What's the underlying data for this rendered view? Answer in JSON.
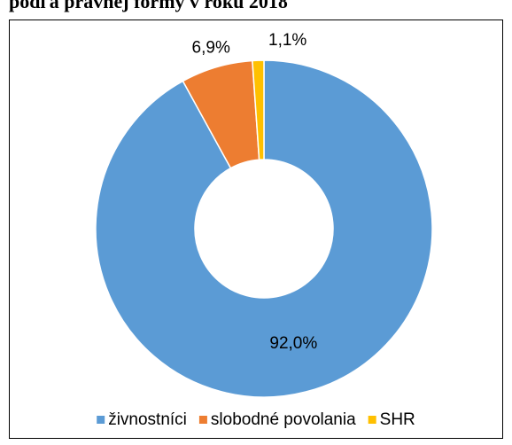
{
  "chart_data": {
    "type": "pie",
    "title": "podľa právnej formy v roku 2018",
    "categories": [
      "živnostníci",
      "slobodné povolania",
      "SHR"
    ],
    "values": [
      92.0,
      6.9,
      1.1
    ],
    "value_labels": [
      "92,0%",
      "6,9%",
      "1,1%"
    ],
    "colors": [
      "#5b9bd5",
      "#ed7d31",
      "#ffc000"
    ],
    "donut": true,
    "legend": "bottom"
  }
}
